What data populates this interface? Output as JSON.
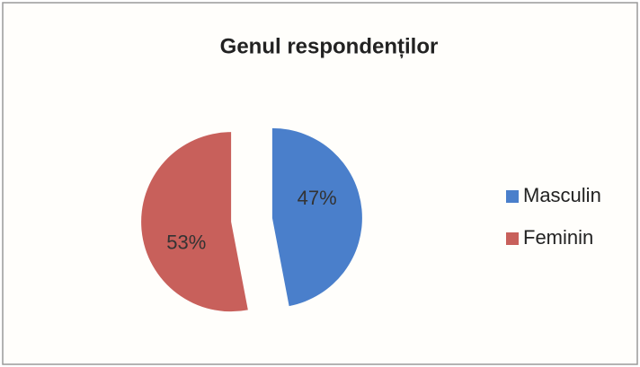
{
  "chart_data": {
    "type": "pie",
    "title": "Genul respondenților",
    "categories": [
      "Masculin",
      "Feminin"
    ],
    "values": [
      47,
      53
    ],
    "value_labels": [
      "47%",
      "53%"
    ],
    "colors": [
      "#4a7fcb",
      "#c8605b"
    ],
    "legend": "right"
  }
}
